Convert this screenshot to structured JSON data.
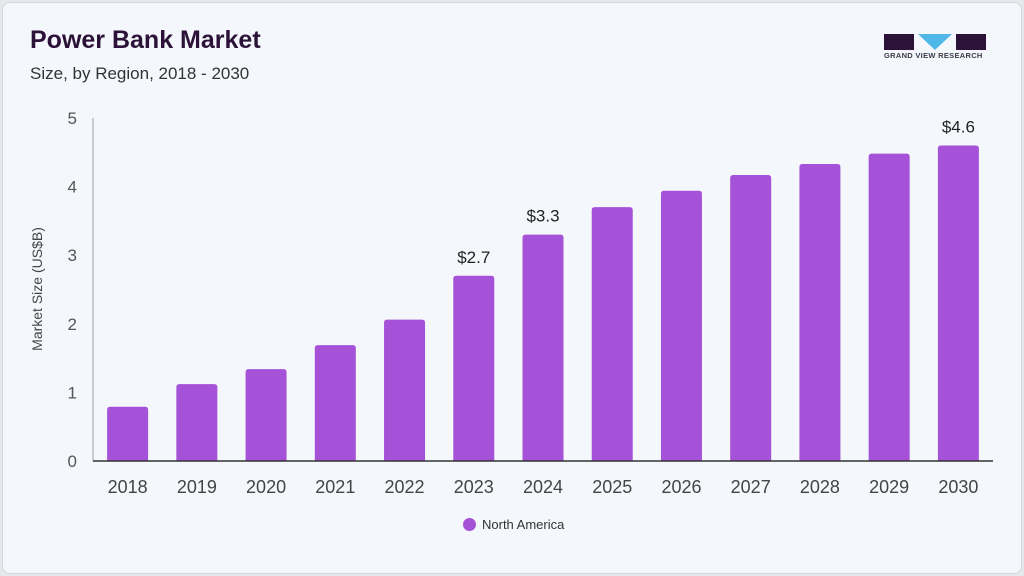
{
  "header": {
    "title": "Power Bank Market",
    "subtitle": "Size, by Region, 2018 - 2030",
    "logo_text": "GRAND VIEW RESEARCH"
  },
  "chart_data": {
    "type": "bar",
    "title": "Power Bank Market",
    "subtitle": "Size, by Region, 2018 - 2030",
    "xlabel": "",
    "ylabel": "Market Size (US$B)",
    "ylim": [
      0,
      5
    ],
    "yticks": [
      0,
      1,
      2,
      3,
      4,
      5
    ],
    "grid": false,
    "legend_position": "bottom",
    "categories": [
      "2018",
      "2019",
      "2020",
      "2021",
      "2022",
      "2023",
      "2024",
      "2025",
      "2026",
      "2027",
      "2028",
      "2029",
      "2030"
    ],
    "series": [
      {
        "name": "North America",
        "color": "#a652d8",
        "values": [
          0.79,
          1.12,
          1.34,
          1.69,
          2.06,
          2.7,
          3.3,
          3.7,
          3.94,
          4.17,
          4.33,
          4.48,
          4.6
        ]
      }
    ],
    "data_labels": [
      {
        "category": "2023",
        "text": "$2.7"
      },
      {
        "category": "2024",
        "text": "$3.3"
      },
      {
        "category": "2030",
        "text": "$4.6"
      }
    ]
  }
}
